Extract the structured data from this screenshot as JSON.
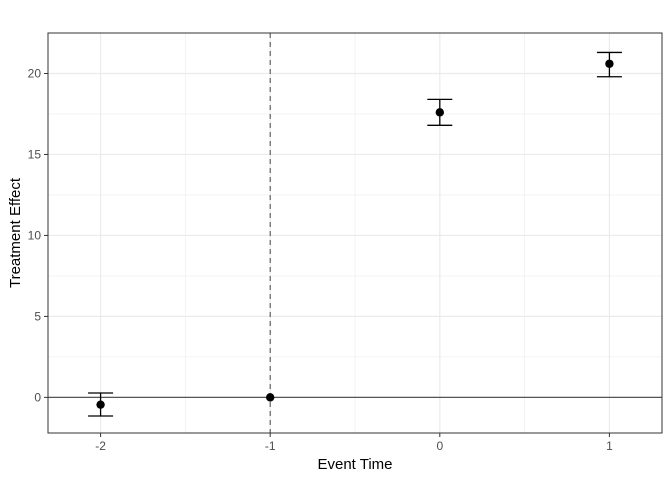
{
  "chart_data": {
    "type": "scatter",
    "title": "",
    "xlabel": "Event Time",
    "ylabel": "Treatment Effect",
    "xlim": [
      -2.31,
      1.31
    ],
    "ylim": [
      -2.2,
      22.5
    ],
    "xticks": [
      -2,
      -1,
      0,
      1
    ],
    "yticks": [
      0,
      5,
      10,
      15,
      20
    ],
    "grid": true,
    "points": [
      {
        "x": -2,
        "y": -0.45,
        "ymin": -1.15,
        "ymax": 0.27
      },
      {
        "x": -1,
        "y": 0,
        "ymin": 0,
        "ymax": 0
      },
      {
        "x": 0,
        "y": 17.6,
        "ymin": 16.8,
        "ymax": 18.4
      },
      {
        "x": 1,
        "y": 20.6,
        "ymin": 19.8,
        "ymax": 21.3
      }
    ],
    "hline": 0,
    "vline_dashed": -1,
    "colors": {
      "points": "#000000",
      "grid": "#ebebeb",
      "refline": "#555555"
    }
  }
}
